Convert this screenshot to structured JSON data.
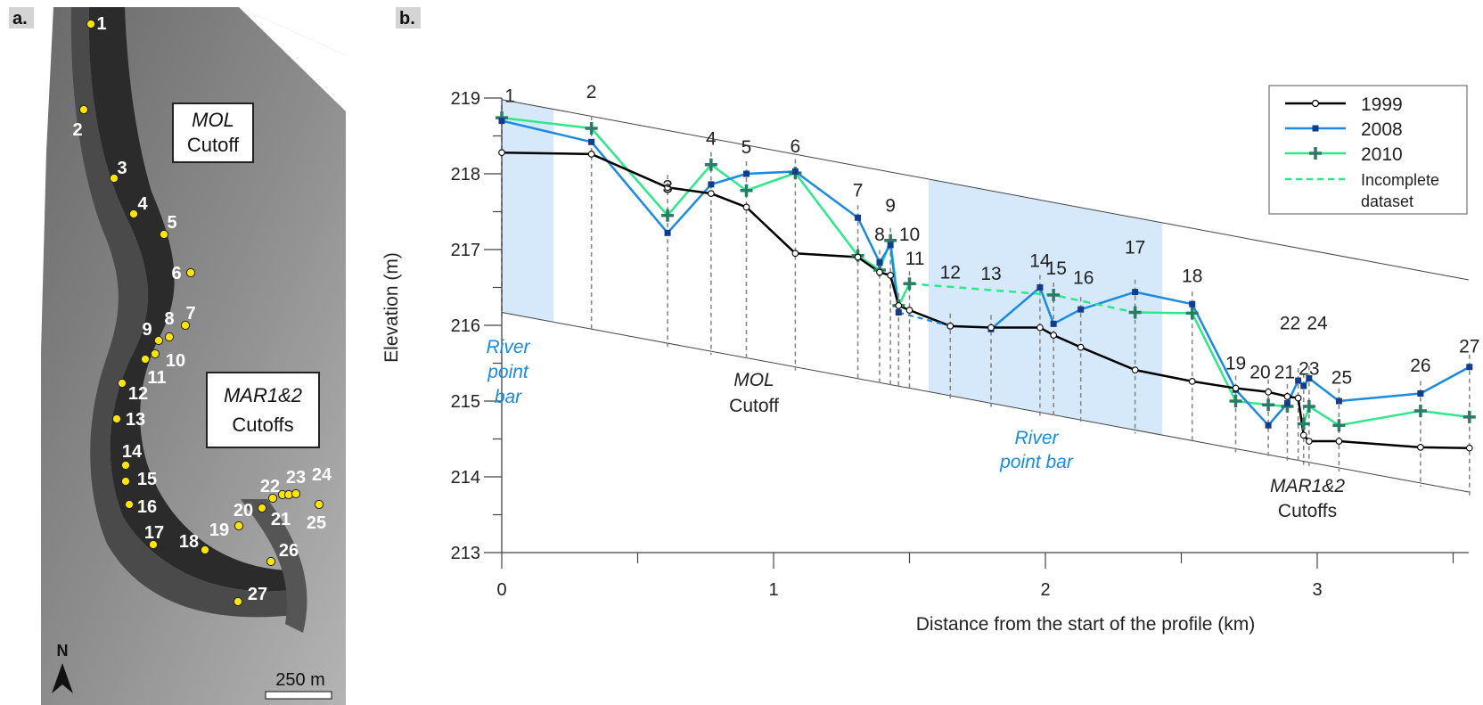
{
  "panel_a": {
    "panel_label": "a.",
    "labels": {
      "mol_italic": "MOL",
      "mol_cutoff": "Cutoff",
      "mar_italic": "MAR1&2",
      "mar_cutoffs": "Cutoffs"
    },
    "north": "N",
    "scale": "250 m",
    "sites": [
      "1",
      "2",
      "3",
      "4",
      "5",
      "6",
      "7",
      "8",
      "9",
      "10",
      "11",
      "12",
      "13",
      "14",
      "15",
      "16",
      "17",
      "18",
      "19",
      "20",
      "21",
      "22",
      "23",
      "24",
      "25",
      "26",
      "27"
    ],
    "colors": {
      "site_marker": "#ffe600"
    }
  },
  "panel_b": {
    "panel_label": "b."
  },
  "chart_data": {
    "type": "line",
    "xlabel": "Distance from the start of the profile (km)",
    "ylabel": "Elevation (m)",
    "xlim": [
      0,
      3.6
    ],
    "ylim": [
      213,
      219
    ],
    "xticks": [
      0,
      1,
      2,
      3
    ],
    "yticks": [
      213,
      214,
      215,
      216,
      217,
      218,
      219
    ],
    "point_labels": [
      "1",
      "2",
      "3",
      "4",
      "5",
      "6",
      "7",
      "8",
      "9",
      "10",
      "11",
      "12",
      "13",
      "14",
      "15",
      "16",
      "17",
      "18",
      "19",
      "20",
      "21",
      "22",
      "23",
      "24",
      "25",
      "26",
      "27"
    ],
    "x": [
      0,
      0.33,
      0.61,
      0.77,
      0.9,
      1.08,
      1.31,
      1.39,
      1.43,
      1.46,
      1.5,
      1.65,
      1.8,
      1.98,
      2.03,
      2.13,
      2.33,
      2.54,
      2.7,
      2.82,
      2.89,
      2.93,
      2.95,
      2.97,
      3.08,
      3.38,
      3.56
    ],
    "series": [
      {
        "name": "1999",
        "color": "#000000",
        "marker": "circle",
        "values": [
          218.28,
          218.26,
          217.82,
          217.74,
          217.56,
          216.95,
          216.9,
          216.7,
          216.66,
          216.26,
          216.2,
          215.99,
          215.97,
          215.97,
          215.87,
          215.71,
          215.41,
          215.26,
          215.17,
          215.12,
          215.06,
          215.04,
          214.55,
          214.47,
          214.47,
          214.39,
          214.38
        ]
      },
      {
        "name": "2008",
        "color": "#1a8be0",
        "marker": "square",
        "values": [
          218.7,
          218.42,
          217.22,
          217.86,
          218.0,
          218.03,
          217.42,
          216.83,
          217.06,
          216.17,
          null,
          null,
          215.95,
          216.5,
          216.02,
          216.21,
          216.44,
          216.28,
          215.15,
          214.68,
          214.97,
          215.27,
          215.2,
          215.3,
          215.0,
          215.1,
          215.45
        ]
      },
      {
        "name": "2010",
        "color": "#2ee88a",
        "marker": "cross",
        "values": [
          218.74,
          218.6,
          217.45,
          218.12,
          217.78,
          218.01,
          216.92,
          216.73,
          217.12,
          216.26,
          216.55,
          null,
          null,
          null,
          216.4,
          null,
          216.17,
          216.16,
          215.0,
          214.95,
          214.93,
          null,
          214.7,
          214.93,
          214.68,
          214.87,
          214.79
        ]
      }
    ],
    "incomplete": {
      "label": "Incomplete dataset",
      "label_line1": "Incomplete",
      "label_line2": "dataset",
      "x": [
        1.5,
        2.03,
        2.33
      ],
      "values": [
        216.55,
        216.4,
        216.17
      ],
      "color": "#2ee88a"
    },
    "bands": [
      [
        0,
        0.19
      ],
      [
        1.57,
        2.43
      ]
    ],
    "band_color": "#d5e9fa",
    "annotations": {
      "river1": [
        "River",
        "point",
        "bar"
      ],
      "mol": [
        "MOL",
        "Cutoff"
      ],
      "river2": [
        "River",
        "point bar"
      ],
      "mar": [
        "MAR1&2",
        "Cutoffs"
      ]
    },
    "legend_placement": "top-right",
    "grid": false
  }
}
